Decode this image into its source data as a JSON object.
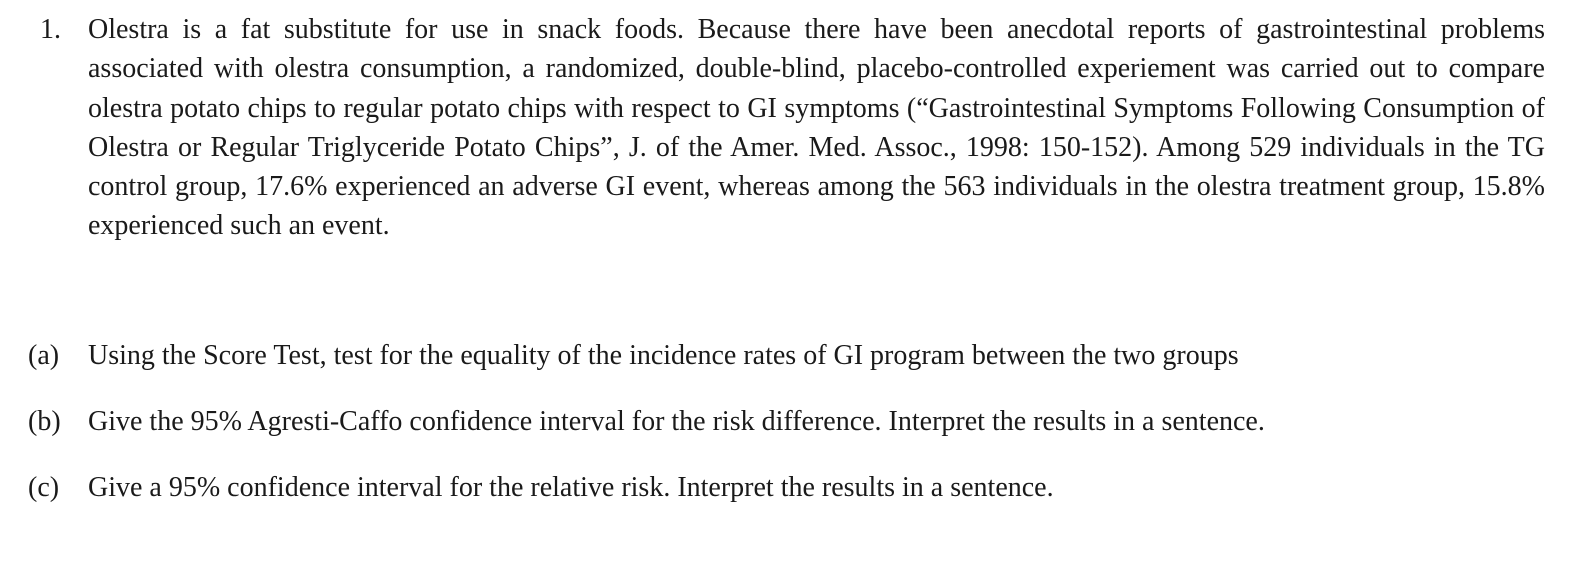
{
  "problem": {
    "number": "1.",
    "text": "Olestra is a fat substitute for use in snack foods. Because there have been anecdotal reports of gastrointestinal problems associated with olestra consumption, a randomized, double-blind, placebo-controlled experiement was carried out to compare olestra potato chips to regular potato chips with respect to GI symptoms (“Gastrointestinal Symptoms Following Consumption of Olestra or Regular Triglyceride Potato Chips”, J. of the Amer. Med. Assoc., 1998: 150-152). Among 529 individuals in the TG control group, 17.6% experienced an adverse GI event, whereas among the 563 individuals in the olestra treatment group, 15.8% experienced such an event."
  },
  "parts": [
    {
      "label": "(a)",
      "text": "Using the Score Test, test for the equality of the incidence rates of GI program between the two groups"
    },
    {
      "label": "(b)",
      "text": "Give the 95% Agresti-Caffo confidence interval for the risk difference. Interpret the results in a sentence."
    },
    {
      "label": "(c)",
      "text": "Give a 95% confidence interval for the relative risk. Interpret the results in a sentence."
    }
  ]
}
